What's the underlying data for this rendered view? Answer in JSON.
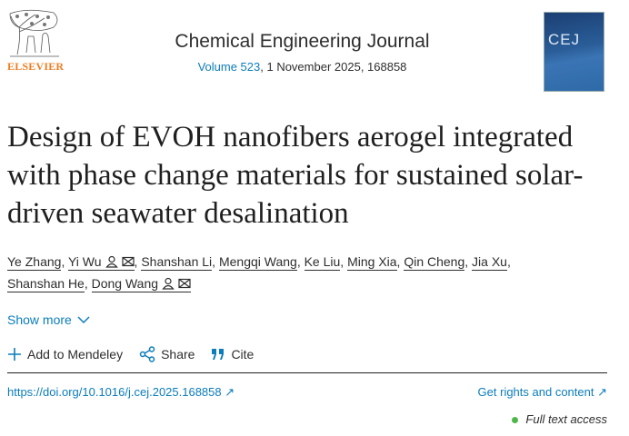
{
  "publisher": {
    "name": "ELSEVIER"
  },
  "journal": {
    "title": "Chemical Engineering Journal",
    "volume_link": "Volume 523",
    "issue_info": ", 1 November 2025, 168858",
    "cover_text": "CEJ"
  },
  "article": {
    "title": "Design of EVOH nanofibers aerogel integrated with phase change materials for sustained solar-driven seawater desalination",
    "authors": [
      {
        "name": "Ye Zhang",
        "icons": false
      },
      {
        "name": "Yi Wu",
        "icons": true
      },
      {
        "name": "Shanshan Li",
        "icons": false
      },
      {
        "name": "Mengqi Wang",
        "icons": false
      },
      {
        "name": "Ke Liu",
        "icons": false
      },
      {
        "name": "Ming Xia",
        "icons": false
      },
      {
        "name": "Qin Cheng",
        "icons": false
      },
      {
        "name": "Jia Xu",
        "icons": false
      },
      {
        "name": "Shanshan He",
        "icons": false
      },
      {
        "name": "Dong Wang",
        "icons": true
      }
    ],
    "show_more": "Show more",
    "doi": "https://doi.org/10.1016/j.cej.2025.168858",
    "rights": "Get rights and content",
    "access": "Full text access"
  },
  "actions": {
    "mendeley": "Add to Mendeley",
    "share": "Share",
    "cite": "Cite"
  },
  "colors": {
    "link": "#0c7dbb",
    "brand": "#f07d22",
    "access_dot": "#4fb748"
  }
}
